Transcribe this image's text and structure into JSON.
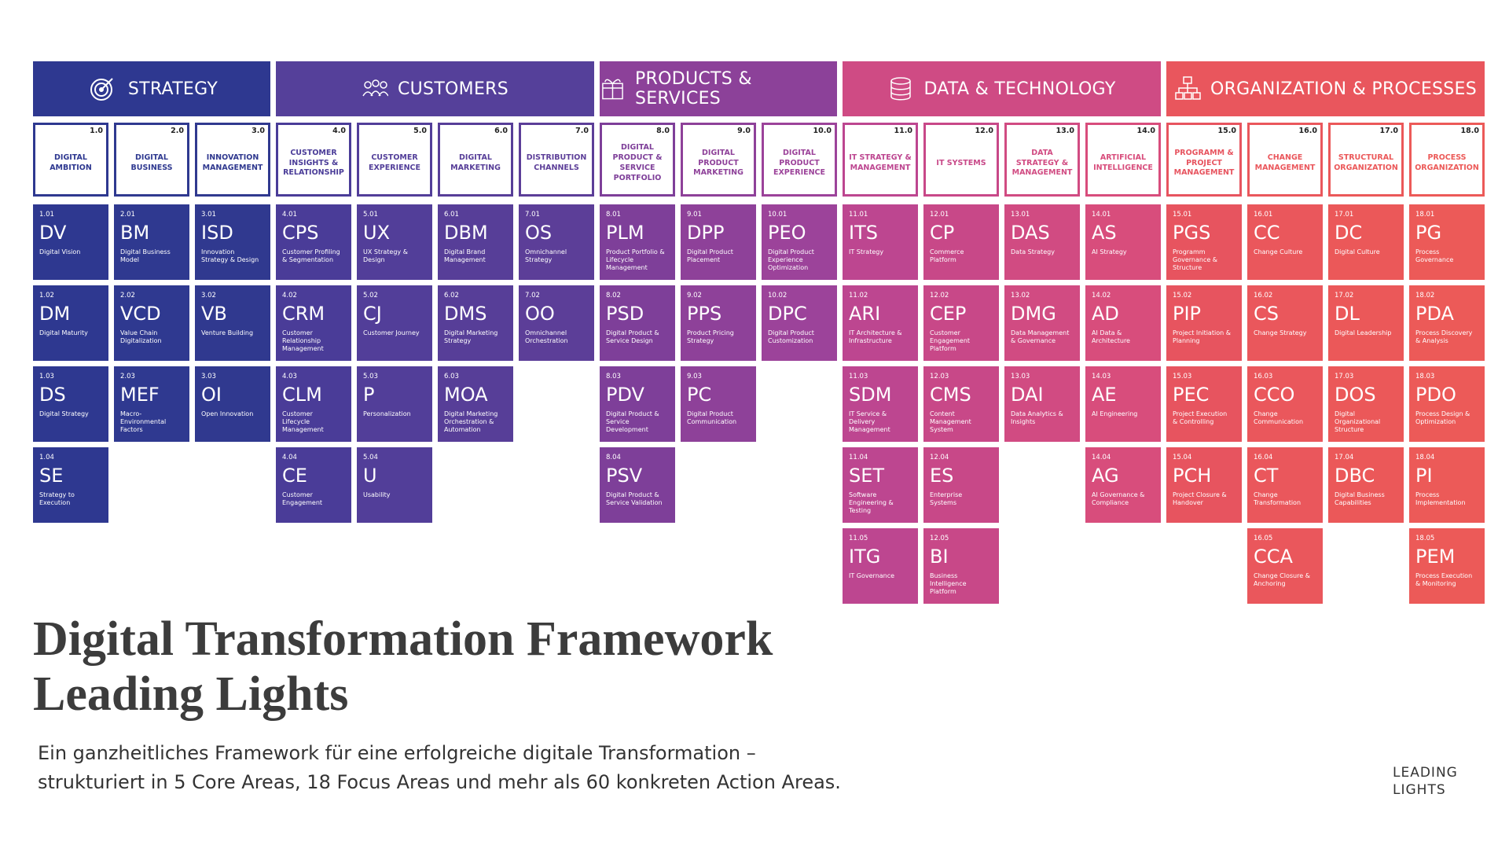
{
  "core_areas": [
    {
      "title": "STRATEGY",
      "focus_areas": [
        {
          "number": "1.0",
          "title": "DIGITAL AMBITION",
          "actions": [
            {
              "number": "1.01",
              "code": "DV",
              "name": "Digital Vision"
            },
            {
              "number": "1.02",
              "code": "DM",
              "name": "Digital Maturity"
            },
            {
              "number": "1.03",
              "code": "DS",
              "name": "Digital Strategy"
            },
            {
              "number": "1.04",
              "code": "SE",
              "name": "Strategy to Execution"
            }
          ]
        },
        {
          "number": "2.0",
          "title": "DIGITAL BUSINESS",
          "actions": [
            {
              "number": "2.01",
              "code": "BM",
              "name": "Digital Business Model"
            },
            {
              "number": "2.02",
              "code": "VCD",
              "name": "Value Chain Digitalization"
            },
            {
              "number": "2.03",
              "code": "MEF",
              "name": "Macro-Environmental Factors"
            }
          ]
        },
        {
          "number": "3.0",
          "title": "INNOVATION MANAGEMENT",
          "actions": [
            {
              "number": "3.01",
              "code": "ISD",
              "name": "Innovation Strategy & Design"
            },
            {
              "number": "3.02",
              "code": "VB",
              "name": "Venture Building"
            },
            {
              "number": "3.03",
              "code": "OI",
              "name": "Open Innovation"
            }
          ]
        }
      ]
    },
    {
      "title": "CUSTOMERS",
      "focus_areas": [
        {
          "number": "4.0",
          "title": "CUSTOMER INSIGHTS & RELATIONSHIP",
          "actions": [
            {
              "number": "4.01",
              "code": "CPS",
              "name": "Customer Profiling & Segmentation"
            },
            {
              "number": "4.02",
              "code": "CRM",
              "name": "Customer Relationship Management"
            },
            {
              "number": "4.03",
              "code": "CLM",
              "name": "Customer Lifecycle Management"
            },
            {
              "number": "4.04",
              "code": "CE",
              "name": "Customer Engagement"
            }
          ]
        },
        {
          "number": "5.0",
          "title": "CUSTOMER EXPERIENCE",
          "actions": [
            {
              "number": "5.01",
              "code": "UX",
              "name": "UX Strategy & Design"
            },
            {
              "number": "5.02",
              "code": "CJ",
              "name": "Customer Journey"
            },
            {
              "number": "5.03",
              "code": "P",
              "name": "Personalization"
            },
            {
              "number": "5.04",
              "code": "U",
              "name": "Usability"
            }
          ]
        },
        {
          "number": "6.0",
          "title": "DIGITAL MARKETING",
          "actions": [
            {
              "number": "6.01",
              "code": "DBM",
              "name": "Digital Brand Management"
            },
            {
              "number": "6.02",
              "code": "DMS",
              "name": "Digital Marketing Strategy"
            },
            {
              "number": "6.03",
              "code": "MOA",
              "name": "Digital Marketing Orchestration & Automation"
            }
          ]
        },
        {
          "number": "7.0",
          "title": "DISTRIBUTION CHANNELS",
          "actions": [
            {
              "number": "7.01",
              "code": "OS",
              "name": "Omnichannel Strategy"
            },
            {
              "number": "7.02",
              "code": "OO",
              "name": "Omnichannel Orchestration"
            }
          ]
        }
      ]
    },
    {
      "title": "PRODUCTS & SERVICES",
      "focus_areas": [
        {
          "number": "8.0",
          "title": "DIGITAL PRODUCT & SERVICE PORTFOLIO",
          "actions": [
            {
              "number": "8.01",
              "code": "PLM",
              "name": "Product Portfolio & Lifecycle Management"
            },
            {
              "number": "8.02",
              "code": "PSD",
              "name": "Digital Product & Service Design"
            },
            {
              "number": "8.03",
              "code": "PDV",
              "name": "Digital Product & Service Development"
            },
            {
              "number": "8.04",
              "code": "PSV",
              "name": "Digital Product & Service Validation"
            }
          ]
        },
        {
          "number": "9.0",
          "title": "DIGITAL PRODUCT MARKETING",
          "actions": [
            {
              "number": "9.01",
              "code": "DPP",
              "name": "Digital Product Placement"
            },
            {
              "number": "9.02",
              "code": "PPS",
              "name": "Product Pricing Strategy"
            },
            {
              "number": "9.03",
              "code": "PC",
              "name": "Digital Product Communication"
            }
          ]
        },
        {
          "number": "10.0",
          "title": "DIGITAL PRODUCT EXPERIENCE",
          "actions": [
            {
              "number": "10.01",
              "code": "PEO",
              "name": "Digital Product Experience Optimization"
            },
            {
              "number": "10.02",
              "code": "DPC",
              "name": "Digital Product Customization"
            }
          ]
        }
      ]
    },
    {
      "title": "DATA & TECHNOLOGY",
      "focus_areas": [
        {
          "number": "11.0",
          "title": "IT STRATEGY & MANAGEMENT",
          "actions": [
            {
              "number": "11.01",
              "code": "ITS",
              "name": "IT Strategy"
            },
            {
              "number": "11.02",
              "code": "ARI",
              "name": "IT Architecture & Infrastructure"
            },
            {
              "number": "11.03",
              "code": "SDM",
              "name": "IT Service & Delivery Management"
            },
            {
              "number": "11.04",
              "code": "SET",
              "name": "Software Engineering & Testing"
            },
            {
              "number": "11.05",
              "code": "ITG",
              "name": "IT Governance"
            }
          ]
        },
        {
          "number": "12.0",
          "title": "IT SYSTEMS",
          "actions": [
            {
              "number": "12.01",
              "code": "CP",
              "name": "Commerce Platform"
            },
            {
              "number": "12.02",
              "code": "CEP",
              "name": "Customer Engagement Platform"
            },
            {
              "number": "12.03",
              "code": "CMS",
              "name": "Content Management System"
            },
            {
              "number": "12.04",
              "code": "ES",
              "name": "Enterprise Systems"
            },
            {
              "number": "12.05",
              "code": "BI",
              "name": "Business Intelligence Platform"
            }
          ]
        },
        {
          "number": "13.0",
          "title": "DATA STRATEGY & MANAGEMENT",
          "actions": [
            {
              "number": "13.01",
              "code": "DAS",
              "name": "Data Strategy"
            },
            {
              "number": "13.02",
              "code": "DMG",
              "name": "Data Management & Governance"
            },
            {
              "number": "13.03",
              "code": "DAI",
              "name": "Data Analytics & Insights"
            }
          ]
        },
        {
          "number": "14.0",
          "title": "ARTIFICIAL INTELLIGENCE",
          "actions": [
            {
              "number": "14.01",
              "code": "AS",
              "name": "AI Strategy"
            },
            {
              "number": "14.02",
              "code": "AD",
              "name": "AI Data & Architecture"
            },
            {
              "number": "14.03",
              "code": "AE",
              "name": "AI Engineering"
            },
            {
              "number": "14.04",
              "code": "AG",
              "name": "AI Governance & Compliance"
            }
          ]
        }
      ]
    },
    {
      "title": "ORGANIZATION & PROCESSES",
      "focus_areas": [
        {
          "number": "15.0",
          "title": "PROGRAMM & PROJECT MANAGEMENT",
          "actions": [
            {
              "number": "15.01",
              "code": "PGS",
              "name": "Programm Governance & Structure"
            },
            {
              "number": "15.02",
              "code": "PIP",
              "name": "Project Initiation & Planning"
            },
            {
              "number": "15.03",
              "code": "PEC",
              "name": "Project Execution & Controlling"
            },
            {
              "number": "15.04",
              "code": "PCH",
              "name": "Project Closure & Handover"
            }
          ]
        },
        {
          "number": "16.0",
          "title": "CHANGE MANAGEMENT",
          "actions": [
            {
              "number": "16.01",
              "code": "CC",
              "name": "Change Culture"
            },
            {
              "number": "16.02",
              "code": "CS",
              "name": "Change Strategy"
            },
            {
              "number": "16.03",
              "code": "CCO",
              "name": "Change Communication"
            },
            {
              "number": "16.04",
              "code": "CT",
              "name": "Change Transformation"
            },
            {
              "number": "16.05",
              "code": "CCA",
              "name": "Change Closure & Anchoring"
            }
          ]
        },
        {
          "number": "17.0",
          "title": "STRUCTURAL ORGANIZATION",
          "actions": [
            {
              "number": "17.01",
              "code": "DC",
              "name": "Digital Culture"
            },
            {
              "number": "17.02",
              "code": "DL",
              "name": "Digital Leadership"
            },
            {
              "number": "17.03",
              "code": "DOS",
              "name": "Digital Organizational Structure"
            },
            {
              "number": "17.04",
              "code": "DBC",
              "name": "Digital Business Capabilities"
            }
          ]
        },
        {
          "number": "18.0",
          "title": "PROCESS ORGANIZATION",
          "actions": [
            {
              "number": "18.01",
              "code": "PG",
              "name": "Process Governance"
            },
            {
              "number": "18.02",
              "code": "PDA",
              "name": "Process Discovery & Analysis"
            },
            {
              "number": "18.03",
              "code": "PDO",
              "name": "Process Design & Optimization"
            },
            {
              "number": "18.04",
              "code": "PI",
              "name": "Process Implementation"
            },
            {
              "number": "18.05",
              "code": "PEM",
              "name": "Process Execution & Monitoring"
            }
          ]
        }
      ]
    }
  ],
  "title_lines": [
    "Digital Transformation Framework",
    "Leading Lights"
  ],
  "subtitle_lines": [
    "Ein ganzheitliches Framework für eine erfolgreiche digitale Transformation –",
    "strukturiert in 5 Core Areas, 18 Focus Areas und mehr als 60 konkreten Action Areas."
  ],
  "logo_lines": [
    "LEADING",
    "LIGHTS"
  ]
}
